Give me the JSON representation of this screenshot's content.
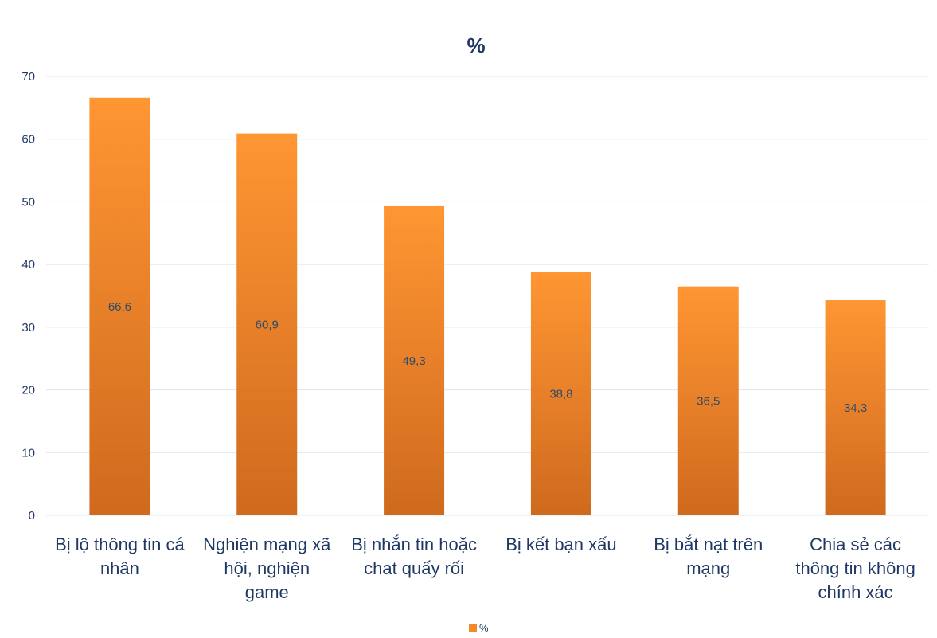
{
  "chart_data": {
    "type": "bar",
    "title": "%",
    "categories": [
      [
        "Bị lộ thông tin cá",
        "nhân"
      ],
      [
        "Nghiện mạng xã",
        "hội, nghiện",
        "game"
      ],
      [
        "Bị nhắn tin hoặc",
        "chat quấy rối"
      ],
      [
        "Bị kết bạn xấu"
      ],
      [
        "Bị bắt nạt trên",
        "mạng"
      ],
      [
        "Chia sẻ các",
        "thông tin không",
        "chính xác"
      ]
    ],
    "series": [
      {
        "name": "%",
        "values": [
          66.6,
          60.9,
          49.3,
          38.8,
          36.5,
          34.3
        ]
      }
    ],
    "data_labels": [
      "66,6",
      "60,9",
      "49,3",
      "38,8",
      "36,5",
      "34,3"
    ],
    "yticks": [
      "0",
      "10",
      "20",
      "30",
      "40",
      "50",
      "60",
      "70"
    ],
    "ylim": [
      0,
      70
    ],
    "grid": true,
    "legend_position": "bottom",
    "colors": {
      "bar_top": "#ff9633",
      "bar_bottom": "#cf6a1e",
      "text": "#1f3864",
      "grid": "#d9e6f2"
    }
  }
}
